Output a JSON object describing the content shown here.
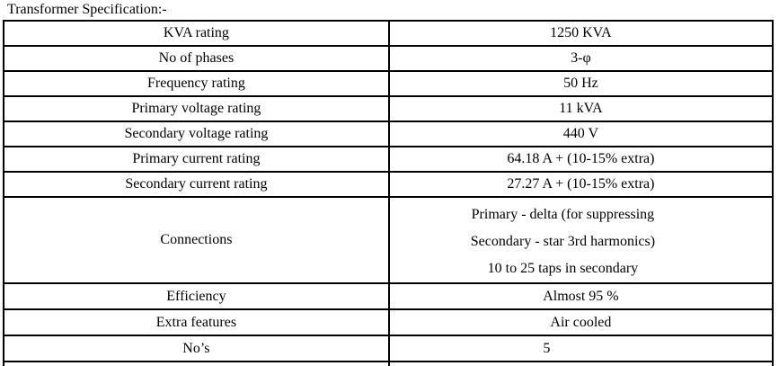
{
  "page": {
    "title": "Transformer Specification:-"
  },
  "table": {
    "rows": [
      {
        "label": "KVA rating",
        "value": "1250 KVA"
      },
      {
        "label": "No of phases",
        "value": "3-φ"
      },
      {
        "label": "Frequency rating",
        "value": "50 Hz"
      },
      {
        "label": "Primary voltage rating",
        "value": "11 kVA"
      },
      {
        "label": "Secondary voltage rating",
        "value": "440 V"
      },
      {
        "label": "Primary current rating",
        "value": "64.18 A + (10-15% extra)"
      },
      {
        "label": "Secondary current rating",
        "value": "27.27 A + (10-15% extra)"
      },
      {
        "label": "Connections",
        "value_lines": [
          "Primary - delta (for suppressing",
          "Secondary - star 3rd harmonics)",
          "10 to 25 taps in secondary"
        ]
      },
      {
        "label": "Efficiency",
        "value": "Almost 95 %"
      },
      {
        "label": "Extra features",
        "value": "Air cooled"
      },
      {
        "label": "No’s",
        "value": "5"
      }
    ]
  }
}
